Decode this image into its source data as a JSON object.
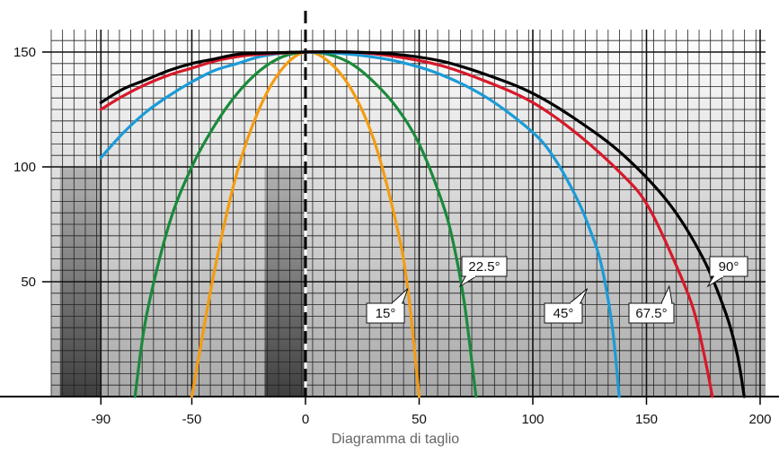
{
  "chart_data": {
    "type": "line",
    "title": "",
    "xlabel": "Diagramma di taglio",
    "ylabel": "",
    "xlim": [
      -110,
      200
    ],
    "ylim": [
      0,
      150
    ],
    "x_ticks": [
      -90,
      -50,
      0,
      50,
      100,
      150,
      200
    ],
    "y_ticks": [
      50,
      100,
      150
    ],
    "x_tick_labels": [
      "-90",
      "-50",
      "0",
      "50",
      "100",
      "150",
      "200"
    ],
    "y_tick_labels": [
      "50",
      "100",
      "150"
    ],
    "grid": true,
    "series": [
      {
        "name": "15°",
        "color": "#f39c12",
        "points": [
          [
            -50,
            0
          ],
          [
            -40,
            55
          ],
          [
            -30,
            98
          ],
          [
            -20,
            126
          ],
          [
            -10,
            143
          ],
          [
            0,
            150
          ],
          [
            10,
            146
          ],
          [
            20,
            134
          ],
          [
            30,
            112
          ],
          [
            40,
            75
          ],
          [
            45,
            47
          ],
          [
            50,
            0
          ]
        ]
      },
      {
        "name": "22.5°",
        "color": "#1a8a3a",
        "points": [
          [
            -75,
            0
          ],
          [
            -70,
            35
          ],
          [
            -60,
            75
          ],
          [
            -50,
            100
          ],
          [
            -40,
            118
          ],
          [
            -30,
            132
          ],
          [
            -20,
            142
          ],
          [
            -10,
            148
          ],
          [
            0,
            150
          ],
          [
            10,
            149
          ],
          [
            20,
            145
          ],
          [
            30,
            137
          ],
          [
            40,
            126
          ],
          [
            50,
            110
          ],
          [
            60,
            85
          ],
          [
            65,
            67
          ],
          [
            70,
            40
          ],
          [
            75,
            0
          ]
        ]
      },
      {
        "name": "45°",
        "color": "#1b9bd7",
        "points": [
          [
            -90,
            104
          ],
          [
            -80,
            115
          ],
          [
            -70,
            124
          ],
          [
            -60,
            131
          ],
          [
            -50,
            137
          ],
          [
            -40,
            142
          ],
          [
            -30,
            145
          ],
          [
            -20,
            148
          ],
          [
            -10,
            149.5
          ],
          [
            0,
            150
          ],
          [
            20,
            149
          ],
          [
            40,
            146
          ],
          [
            60,
            140
          ],
          [
            80,
            130
          ],
          [
            100,
            115
          ],
          [
            110,
            103
          ],
          [
            120,
            85
          ],
          [
            125,
            73
          ],
          [
            130,
            58
          ],
          [
            135,
            30
          ],
          [
            138,
            0
          ]
        ]
      },
      {
        "name": "67.5°",
        "color": "#d7192a",
        "points": [
          [
            -90,
            125
          ],
          [
            -80,
            131
          ],
          [
            -70,
            136
          ],
          [
            -60,
            140
          ],
          [
            -50,
            143
          ],
          [
            -40,
            146
          ],
          [
            -30,
            148
          ],
          [
            -20,
            149
          ],
          [
            0,
            150
          ],
          [
            20,
            150
          ],
          [
            40,
            148
          ],
          [
            60,
            144
          ],
          [
            80,
            137
          ],
          [
            100,
            128
          ],
          [
            120,
            114
          ],
          [
            140,
            96
          ],
          [
            150,
            84
          ],
          [
            160,
            64
          ],
          [
            170,
            40
          ],
          [
            175,
            20
          ],
          [
            179,
            0
          ]
        ]
      },
      {
        "name": "90°",
        "color": "#000000",
        "points": [
          [
            -90,
            128
          ],
          [
            -80,
            134
          ],
          [
            -70,
            138
          ],
          [
            -60,
            142
          ],
          [
            -50,
            145
          ],
          [
            -40,
            147
          ],
          [
            -30,
            149
          ],
          [
            -20,
            149.5
          ],
          [
            0,
            150
          ],
          [
            20,
            150
          ],
          [
            40,
            149
          ],
          [
            60,
            146
          ],
          [
            80,
            140
          ],
          [
            100,
            132
          ],
          [
            120,
            120
          ],
          [
            140,
            105
          ],
          [
            160,
            84
          ],
          [
            175,
            60
          ],
          [
            185,
            36
          ],
          [
            190,
            18
          ],
          [
            193,
            0
          ]
        ]
      }
    ],
    "annotations": [
      {
        "text": "15°",
        "series": "15°",
        "at": [
          45,
          47
        ]
      },
      {
        "text": "22.5°",
        "series": "22.5°",
        "at": [
          68,
          48
        ]
      },
      {
        "text": "45°",
        "series": "45°",
        "at": [
          124,
          47
        ]
      },
      {
        "text": "67.5°",
        "series": "67.5°",
        "at": [
          160,
          48
        ]
      },
      {
        "text": "90°",
        "series": "90°",
        "at": [
          177,
          48
        ]
      }
    ],
    "shaded_regions": [
      {
        "x": [
          -108,
          -90
        ],
        "y": [
          0,
          100
        ]
      },
      {
        "x": [
          -18,
          0
        ],
        "y": [
          0,
          100
        ]
      }
    ],
    "center_line_x": 0
  }
}
